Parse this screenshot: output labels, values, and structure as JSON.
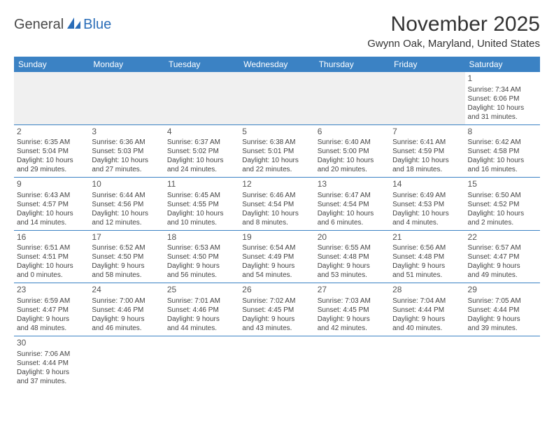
{
  "logo": {
    "part1": "General",
    "part2": "Blue"
  },
  "title": "November 2025",
  "location": "Gwynn Oak, Maryland, United States",
  "dayHeaders": [
    "Sunday",
    "Monday",
    "Tuesday",
    "Wednesday",
    "Thursday",
    "Friday",
    "Saturday"
  ],
  "colors": {
    "headerBg": "#3b82c4",
    "headerText": "#ffffff",
    "blankBg": "#f0f0f0",
    "rowBorder": "#3b82c4"
  },
  "weeks": [
    [
      {
        "blank": true
      },
      {
        "blank": true
      },
      {
        "blank": true
      },
      {
        "blank": true
      },
      {
        "blank": true
      },
      {
        "blank": true
      },
      {
        "num": "1",
        "sunrise": "Sunrise: 7:34 AM",
        "sunset": "Sunset: 6:06 PM",
        "daylight1": "Daylight: 10 hours",
        "daylight2": "and 31 minutes."
      }
    ],
    [
      {
        "num": "2",
        "sunrise": "Sunrise: 6:35 AM",
        "sunset": "Sunset: 5:04 PM",
        "daylight1": "Daylight: 10 hours",
        "daylight2": "and 29 minutes."
      },
      {
        "num": "3",
        "sunrise": "Sunrise: 6:36 AM",
        "sunset": "Sunset: 5:03 PM",
        "daylight1": "Daylight: 10 hours",
        "daylight2": "and 27 minutes."
      },
      {
        "num": "4",
        "sunrise": "Sunrise: 6:37 AM",
        "sunset": "Sunset: 5:02 PM",
        "daylight1": "Daylight: 10 hours",
        "daylight2": "and 24 minutes."
      },
      {
        "num": "5",
        "sunrise": "Sunrise: 6:38 AM",
        "sunset": "Sunset: 5:01 PM",
        "daylight1": "Daylight: 10 hours",
        "daylight2": "and 22 minutes."
      },
      {
        "num": "6",
        "sunrise": "Sunrise: 6:40 AM",
        "sunset": "Sunset: 5:00 PM",
        "daylight1": "Daylight: 10 hours",
        "daylight2": "and 20 minutes."
      },
      {
        "num": "7",
        "sunrise": "Sunrise: 6:41 AM",
        "sunset": "Sunset: 4:59 PM",
        "daylight1": "Daylight: 10 hours",
        "daylight2": "and 18 minutes."
      },
      {
        "num": "8",
        "sunrise": "Sunrise: 6:42 AM",
        "sunset": "Sunset: 4:58 PM",
        "daylight1": "Daylight: 10 hours",
        "daylight2": "and 16 minutes."
      }
    ],
    [
      {
        "num": "9",
        "sunrise": "Sunrise: 6:43 AM",
        "sunset": "Sunset: 4:57 PM",
        "daylight1": "Daylight: 10 hours",
        "daylight2": "and 14 minutes."
      },
      {
        "num": "10",
        "sunrise": "Sunrise: 6:44 AM",
        "sunset": "Sunset: 4:56 PM",
        "daylight1": "Daylight: 10 hours",
        "daylight2": "and 12 minutes."
      },
      {
        "num": "11",
        "sunrise": "Sunrise: 6:45 AM",
        "sunset": "Sunset: 4:55 PM",
        "daylight1": "Daylight: 10 hours",
        "daylight2": "and 10 minutes."
      },
      {
        "num": "12",
        "sunrise": "Sunrise: 6:46 AM",
        "sunset": "Sunset: 4:54 PM",
        "daylight1": "Daylight: 10 hours",
        "daylight2": "and 8 minutes."
      },
      {
        "num": "13",
        "sunrise": "Sunrise: 6:47 AM",
        "sunset": "Sunset: 4:54 PM",
        "daylight1": "Daylight: 10 hours",
        "daylight2": "and 6 minutes."
      },
      {
        "num": "14",
        "sunrise": "Sunrise: 6:49 AM",
        "sunset": "Sunset: 4:53 PM",
        "daylight1": "Daylight: 10 hours",
        "daylight2": "and 4 minutes."
      },
      {
        "num": "15",
        "sunrise": "Sunrise: 6:50 AM",
        "sunset": "Sunset: 4:52 PM",
        "daylight1": "Daylight: 10 hours",
        "daylight2": "and 2 minutes."
      }
    ],
    [
      {
        "num": "16",
        "sunrise": "Sunrise: 6:51 AM",
        "sunset": "Sunset: 4:51 PM",
        "daylight1": "Daylight: 10 hours",
        "daylight2": "and 0 minutes."
      },
      {
        "num": "17",
        "sunrise": "Sunrise: 6:52 AM",
        "sunset": "Sunset: 4:50 PM",
        "daylight1": "Daylight: 9 hours",
        "daylight2": "and 58 minutes."
      },
      {
        "num": "18",
        "sunrise": "Sunrise: 6:53 AM",
        "sunset": "Sunset: 4:50 PM",
        "daylight1": "Daylight: 9 hours",
        "daylight2": "and 56 minutes."
      },
      {
        "num": "19",
        "sunrise": "Sunrise: 6:54 AM",
        "sunset": "Sunset: 4:49 PM",
        "daylight1": "Daylight: 9 hours",
        "daylight2": "and 54 minutes."
      },
      {
        "num": "20",
        "sunrise": "Sunrise: 6:55 AM",
        "sunset": "Sunset: 4:48 PM",
        "daylight1": "Daylight: 9 hours",
        "daylight2": "and 53 minutes."
      },
      {
        "num": "21",
        "sunrise": "Sunrise: 6:56 AM",
        "sunset": "Sunset: 4:48 PM",
        "daylight1": "Daylight: 9 hours",
        "daylight2": "and 51 minutes."
      },
      {
        "num": "22",
        "sunrise": "Sunrise: 6:57 AM",
        "sunset": "Sunset: 4:47 PM",
        "daylight1": "Daylight: 9 hours",
        "daylight2": "and 49 minutes."
      }
    ],
    [
      {
        "num": "23",
        "sunrise": "Sunrise: 6:59 AM",
        "sunset": "Sunset: 4:47 PM",
        "daylight1": "Daylight: 9 hours",
        "daylight2": "and 48 minutes."
      },
      {
        "num": "24",
        "sunrise": "Sunrise: 7:00 AM",
        "sunset": "Sunset: 4:46 PM",
        "daylight1": "Daylight: 9 hours",
        "daylight2": "and 46 minutes."
      },
      {
        "num": "25",
        "sunrise": "Sunrise: 7:01 AM",
        "sunset": "Sunset: 4:46 PM",
        "daylight1": "Daylight: 9 hours",
        "daylight2": "and 44 minutes."
      },
      {
        "num": "26",
        "sunrise": "Sunrise: 7:02 AM",
        "sunset": "Sunset: 4:45 PM",
        "daylight1": "Daylight: 9 hours",
        "daylight2": "and 43 minutes."
      },
      {
        "num": "27",
        "sunrise": "Sunrise: 7:03 AM",
        "sunset": "Sunset: 4:45 PM",
        "daylight1": "Daylight: 9 hours",
        "daylight2": "and 42 minutes."
      },
      {
        "num": "28",
        "sunrise": "Sunrise: 7:04 AM",
        "sunset": "Sunset: 4:44 PM",
        "daylight1": "Daylight: 9 hours",
        "daylight2": "and 40 minutes."
      },
      {
        "num": "29",
        "sunrise": "Sunrise: 7:05 AM",
        "sunset": "Sunset: 4:44 PM",
        "daylight1": "Daylight: 9 hours",
        "daylight2": "and 39 minutes."
      }
    ],
    [
      {
        "num": "30",
        "sunrise": "Sunrise: 7:06 AM",
        "sunset": "Sunset: 4:44 PM",
        "daylight1": "Daylight: 9 hours",
        "daylight2": "and 37 minutes."
      },
      {
        "blank": true,
        "bottom": true
      },
      {
        "blank": true,
        "bottom": true
      },
      {
        "blank": true,
        "bottom": true
      },
      {
        "blank": true,
        "bottom": true
      },
      {
        "blank": true,
        "bottom": true
      },
      {
        "blank": true,
        "bottom": true
      }
    ]
  ]
}
